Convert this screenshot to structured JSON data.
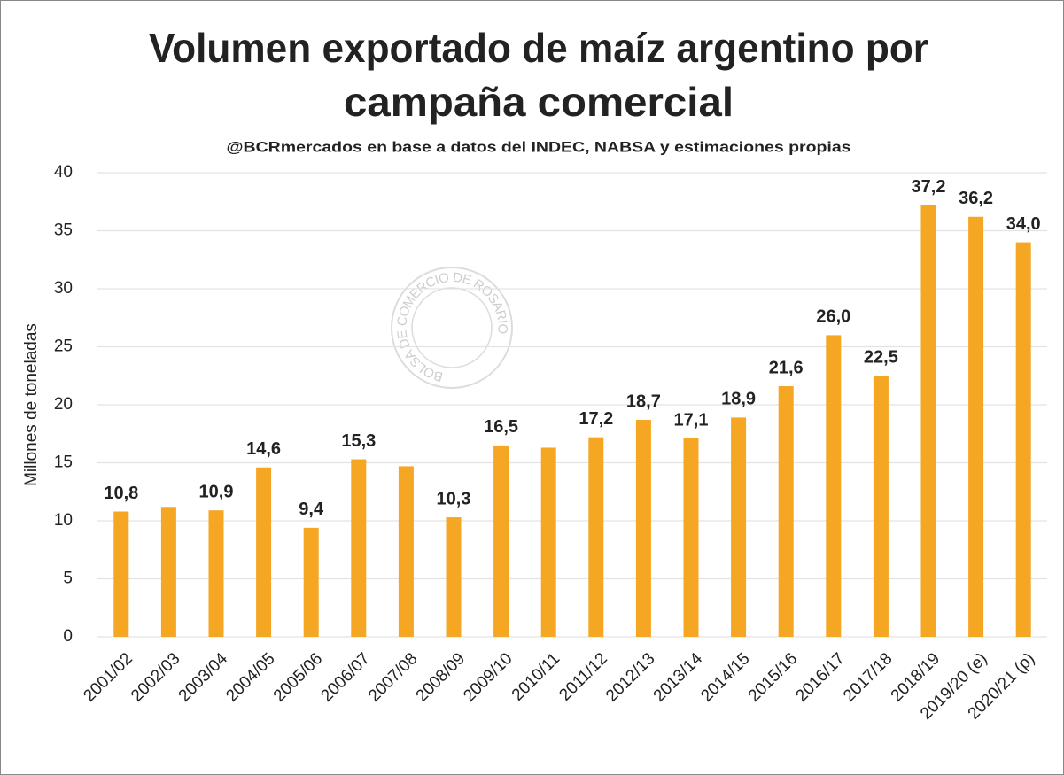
{
  "chart_data": {
    "type": "bar",
    "title": [
      "Volumen exportado de maíz argentino por",
      "campaña comercial"
    ],
    "subtitle": "@BCRmercados en base a datos del INDEC, NABSA y estimaciones propias",
    "watermark": "BOLSA DE COMERCIO DE ROSARIO",
    "y_label": "Millones de toneladas",
    "categories": [
      "2001/02",
      "2002/03",
      "2003/04",
      "2004/05",
      "2005/06",
      "2006/07",
      "2007/08",
      "2008/09",
      "2009/10",
      "2010/11",
      "2011/12",
      "2012/13",
      "2013/14",
      "2014/15",
      "2015/16",
      "2016/17",
      "2017/18",
      "2018/19",
      "2019/20 (e)",
      "2020/21 (p)"
    ],
    "values": [
      10.8,
      11.2,
      10.9,
      14.6,
      9.4,
      15.3,
      14.7,
      10.3,
      16.5,
      16.3,
      17.2,
      18.7,
      17.1,
      18.9,
      21.6,
      26.0,
      22.5,
      37.2,
      36.2,
      34.0
    ],
    "value_labels": [
      "10,8",
      null,
      "10,9",
      "14,6",
      "9,4",
      "15,3",
      null,
      "10,3",
      "16,5",
      null,
      "17,2",
      "18,7",
      "17,1",
      "18,9",
      "21,6",
      "26,0",
      "22,5",
      "37,2",
      "36,2",
      "34,0"
    ],
    "color": "#f5a623",
    "ylim": [
      0,
      40
    ],
    "yticks": [
      0,
      5,
      10,
      15,
      20,
      25,
      30,
      35,
      40
    ],
    "grid": true
  }
}
